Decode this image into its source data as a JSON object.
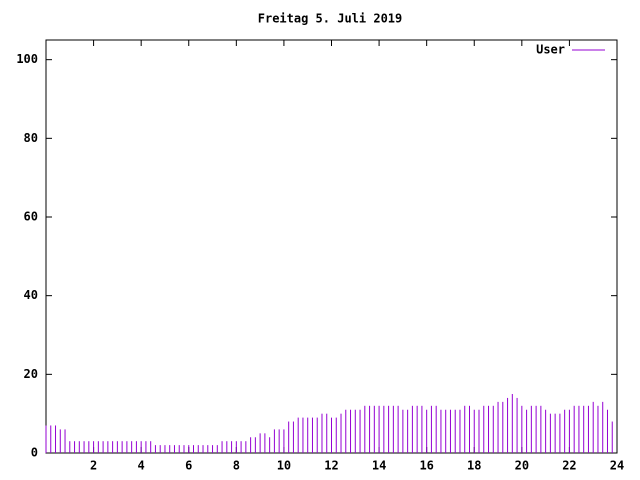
{
  "chart_data": {
    "type": "impulses",
    "title": "Freitag 5. Juli 2019",
    "series": [
      {
        "name": "User",
        "color": "#9400d3",
        "x": [
          0,
          0.2,
          0.4,
          0.6,
          0.8,
          1,
          1.2,
          1.4,
          1.6,
          1.8,
          2,
          2.2,
          2.4,
          2.6,
          2.8,
          3,
          3.2,
          3.4,
          3.6,
          3.8,
          4,
          4.2,
          4.4,
          4.6,
          4.8,
          5,
          5.2,
          5.4,
          5.6,
          5.8,
          6,
          6.2,
          6.4,
          6.6,
          6.8,
          7,
          7.2,
          7.4,
          7.6,
          7.8,
          8,
          8.2,
          8.4,
          8.6,
          8.8,
          9,
          9.2,
          9.4,
          9.6,
          9.8,
          10,
          10.2,
          10.4,
          10.6,
          10.8,
          11,
          11.2,
          11.4,
          11.6,
          11.8,
          12,
          12.2,
          12.4,
          12.6,
          12.8,
          13,
          13.2,
          13.4,
          13.6,
          13.8,
          14,
          14.2,
          14.4,
          14.6,
          14.8,
          15,
          15.2,
          15.4,
          15.6,
          15.8,
          16,
          16.2,
          16.4,
          16.6,
          16.8,
          17,
          17.2,
          17.4,
          17.6,
          17.8,
          18,
          18.2,
          18.4,
          18.6,
          18.8,
          19,
          19.2,
          19.4,
          19.6,
          19.8,
          20,
          20.2,
          20.4,
          20.6,
          20.8,
          21,
          21.2,
          21.4,
          21.6,
          21.8,
          22,
          22.2,
          22.4,
          22.6,
          22.8,
          23,
          23.2,
          23.4,
          23.6,
          23.8
        ],
        "values": [
          7,
          7,
          7,
          6,
          6,
          3,
          3,
          3,
          3,
          3,
          3,
          3,
          3,
          3,
          3,
          3,
          3,
          3,
          3,
          3,
          3,
          3,
          3,
          2,
          2,
          2,
          2,
          2,
          2,
          2,
          2,
          2,
          2,
          2,
          2,
          2,
          2,
          3,
          3,
          3,
          3,
          3,
          3,
          4,
          4,
          5,
          5,
          4,
          6,
          6,
          6,
          8,
          8,
          9,
          9,
          9,
          9,
          9,
          10,
          10,
          9,
          9,
          10,
          11,
          11,
          11,
          11,
          12,
          12,
          12,
          12,
          12,
          12,
          12,
          12,
          11,
          11,
          12,
          12,
          12,
          11,
          12,
          12,
          11,
          11,
          11,
          11,
          11,
          12,
          12,
          11,
          11,
          12,
          12,
          12,
          13,
          13,
          14,
          15,
          14,
          12,
          11,
          12,
          12,
          12,
          11,
          10,
          10,
          10,
          11,
          11,
          12,
          12,
          12,
          12,
          13,
          12,
          13,
          11,
          8
        ]
      }
    ],
    "xlim": [
      0,
      24
    ],
    "xticks": [
      2,
      4,
      6,
      8,
      10,
      12,
      14,
      16,
      18,
      20,
      22,
      24
    ],
    "ylim": [
      0,
      105
    ],
    "yticks": [
      0,
      20,
      40,
      60,
      80,
      100
    ],
    "legend": "top-right"
  }
}
